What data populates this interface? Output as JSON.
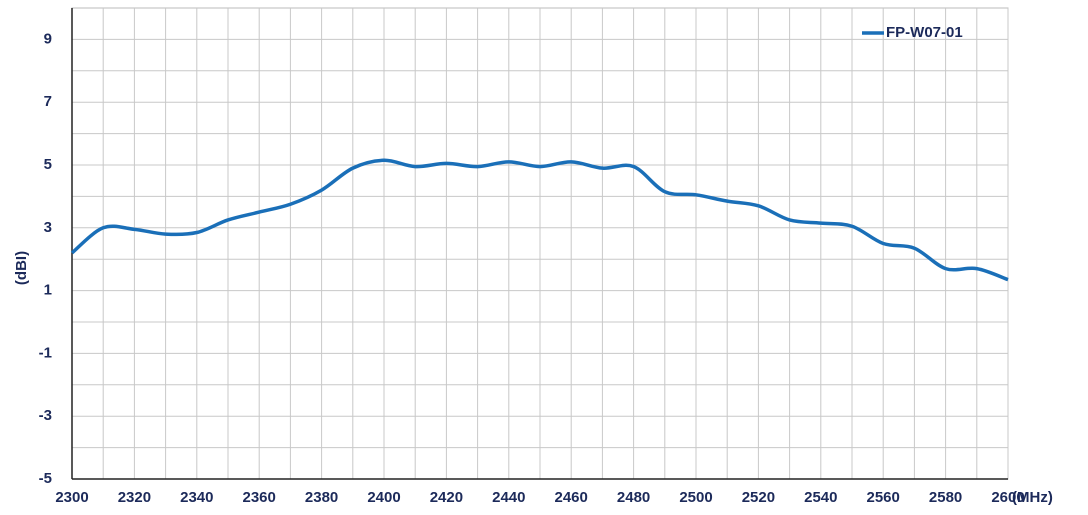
{
  "chart_data": {
    "type": "line",
    "x_label": "(MHz)",
    "y_label": "(dBI)",
    "x": [
      2300,
      2310,
      2320,
      2330,
      2340,
      2350,
      2360,
      2370,
      2380,
      2390,
      2400,
      2410,
      2420,
      2430,
      2440,
      2450,
      2460,
      2470,
      2480,
      2490,
      2500,
      2510,
      2520,
      2530,
      2540,
      2550,
      2560,
      2570,
      2580,
      2590,
      2600
    ],
    "series": [
      {
        "name": "FP-W07-01",
        "color": "#1a6fb8",
        "values": [
          2.2,
          3.0,
          2.95,
          2.8,
          2.85,
          3.25,
          3.5,
          3.75,
          4.2,
          4.9,
          5.15,
          4.95,
          5.05,
          4.95,
          5.1,
          4.95,
          5.1,
          4.9,
          4.95,
          4.15,
          4.05,
          3.85,
          3.7,
          3.25,
          3.15,
          3.05,
          2.5,
          2.35,
          1.7,
          1.7,
          1.35
        ]
      }
    ],
    "xlim": [
      2300,
      2600
    ],
    "xticks": [
      2300,
      2320,
      2340,
      2360,
      2380,
      2400,
      2420,
      2440,
      2460,
      2480,
      2500,
      2520,
      2540,
      2560,
      2580,
      2600
    ],
    "ylim": [
      -5,
      10
    ],
    "yticks": [
      9,
      7,
      5,
      3,
      1,
      -1,
      -3,
      -5
    ],
    "xminor_grid": [
      2310,
      2330,
      2350,
      2370,
      2390,
      2410,
      2430,
      2450,
      2470,
      2490,
      2510,
      2530,
      2550,
      2570,
      2590
    ],
    "yminor_grid": [
      8,
      6,
      4,
      2,
      0,
      -2,
      -4
    ],
    "grid": true,
    "smooth": true,
    "legend": "top-right"
  }
}
